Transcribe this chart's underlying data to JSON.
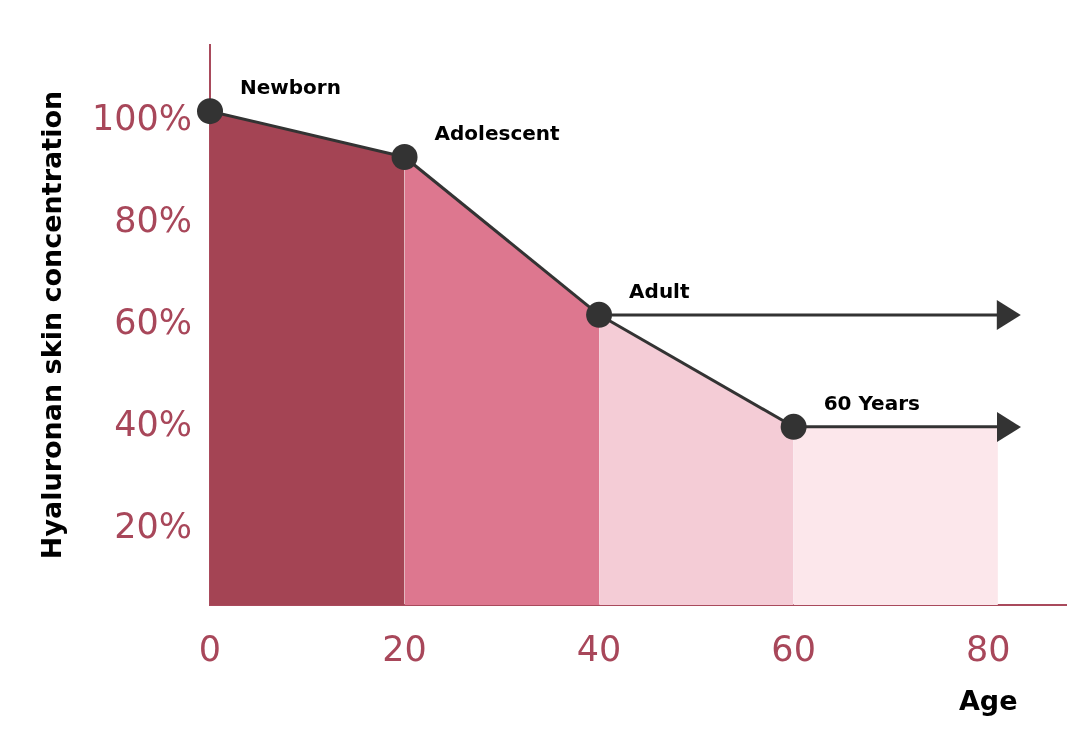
{
  "chart_data": {
    "type": "area",
    "xlabel": "Age",
    "ylabel": "Hyaluronan skin concentration",
    "xlim": [
      0,
      88
    ],
    "xticks": [
      0,
      20,
      40,
      60,
      80
    ],
    "ylim": [
      5,
      115
    ],
    "yticks": [
      {
        "value": 20,
        "label": "20%"
      },
      {
        "value": 40,
        "label": "40%"
      },
      {
        "value": 60,
        "label": "60%"
      },
      {
        "value": 80,
        "label": "80%"
      },
      {
        "value": 100,
        "label": "100%"
      }
    ],
    "series": [
      {
        "x": [
          0,
          20
        ],
        "values": [
          102,
          93
        ],
        "color": "#a44454"
      },
      {
        "x": [
          20,
          40
        ],
        "values": [
          93,
          62
        ],
        "color": "#dd778f"
      },
      {
        "x": [
          40,
          60
        ],
        "values": [
          62,
          40
        ],
        "color": "#f4ccd6"
      },
      {
        "x": [
          60,
          81
        ],
        "values": [
          40,
          40
        ],
        "color": "#fce7eb"
      },
      {
        "type": "scatter",
        "x": [
          0,
          20,
          40,
          60
        ],
        "values": [
          102,
          93,
          62,
          40
        ],
        "color": "#333333",
        "marker": "circle"
      }
    ],
    "annotations": [
      {
        "text": "Newborn",
        "x": 0,
        "y": 102
      },
      {
        "text": "Adolescent",
        "x": 20,
        "y": 93
      },
      {
        "text": "Adult",
        "x": 40,
        "y": 62
      },
      {
        "text": "60 Years",
        "x": 60,
        "y": 40
      }
    ]
  }
}
